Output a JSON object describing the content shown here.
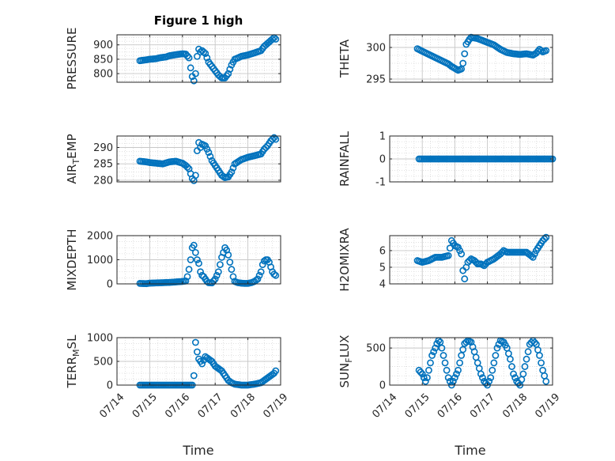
{
  "figure": {
    "title": "Figure 1 high",
    "xlabel": "Time",
    "xticks": [
      "07/14",
      "07/15",
      "07/16",
      "07/17",
      "07/18",
      "07/19"
    ],
    "marker_color": "#0072BD"
  },
  "chart_data": [
    {
      "type": "scatter",
      "ylabel": "PRESSURE",
      "xlim": [
        "07/14",
        "07/19"
      ],
      "ylim": [
        770,
        935
      ],
      "yticks": [
        800,
        850,
        900
      ],
      "yticklabels": [
        "800",
        "850",
        "900"
      ],
      "grid": true,
      "x_start_day": 14.7,
      "x_end_day": 18.85,
      "x": [
        14.7,
        14.9,
        15.0,
        15.2,
        15.3,
        15.5,
        15.6,
        15.8,
        16.0,
        16.1,
        16.2,
        16.25,
        16.3,
        16.35,
        16.4,
        16.45,
        16.5,
        16.55,
        16.6,
        16.7,
        16.8,
        17.0,
        17.1,
        17.2,
        17.3,
        17.4,
        17.5,
        17.6,
        17.8,
        18.0,
        18.2,
        18.4,
        18.5,
        18.6,
        18.7,
        18.8,
        18.85
      ],
      "y": [
        845,
        848,
        850,
        852,
        855,
        858,
        862,
        866,
        869,
        868,
        855,
        820,
        790,
        775,
        800,
        860,
        885,
        875,
        880,
        870,
        840,
        810,
        795,
        785,
        785,
        800,
        830,
        850,
        860,
        865,
        872,
        880,
        895,
        905,
        915,
        925,
        920
      ]
    },
    {
      "type": "scatter",
      "ylabel": "THETA",
      "xlim": [
        "07/14",
        "07/19"
      ],
      "ylim": [
        294.5,
        302
      ],
      "yticks": [
        295,
        300
      ],
      "yticklabels": [
        "295",
        "300"
      ],
      "grid": true,
      "x": [
        14.85,
        15.0,
        15.2,
        15.4,
        15.6,
        15.8,
        15.9,
        16.0,
        16.1,
        16.2,
        16.25,
        16.3,
        16.35,
        16.45,
        16.5,
        16.6,
        16.7,
        16.8,
        17.0,
        17.2,
        17.4,
        17.6,
        17.8,
        18.0,
        18.2,
        18.4,
        18.5,
        18.6,
        18.7,
        18.8
      ],
      "y": [
        299.8,
        299.4,
        298.9,
        298.4,
        297.9,
        297.4,
        297.0,
        296.7,
        296.4,
        296.6,
        297.5,
        299.0,
        300.5,
        301.3,
        301.6,
        301.5,
        301.4,
        301.2,
        300.8,
        300.4,
        299.7,
        299.2,
        299.0,
        298.9,
        299.0,
        298.8,
        299.1,
        299.7,
        299.3,
        299.5
      ]
    },
    {
      "type": "scatter",
      "ylabel": "AIR_TEMP",
      "xlim": [
        "07/14",
        "07/19"
      ],
      "ylim": [
        279.5,
        293.5
      ],
      "yticks": [
        280,
        285,
        290
      ],
      "yticklabels": [
        "280",
        "285",
        "290"
      ],
      "grid": true,
      "x": [
        14.7,
        14.9,
        15.0,
        15.2,
        15.4,
        15.6,
        15.8,
        16.0,
        16.1,
        16.2,
        16.25,
        16.3,
        16.35,
        16.4,
        16.45,
        16.5,
        16.55,
        16.6,
        16.7,
        16.8,
        16.9,
        17.0,
        17.1,
        17.2,
        17.3,
        17.4,
        17.5,
        17.6,
        17.8,
        18.0,
        18.2,
        18.4,
        18.5,
        18.6,
        18.7,
        18.8,
        18.85
      ],
      "y": [
        285.8,
        285.6,
        285.4,
        285.2,
        285.0,
        285.6,
        285.8,
        285.2,
        284.5,
        283.5,
        282.0,
        280.5,
        279.9,
        281.5,
        289.0,
        291.5,
        290.0,
        291.0,
        290.5,
        288.5,
        286.0,
        284.5,
        283.0,
        281.5,
        280.8,
        281.0,
        282.5,
        285.0,
        286.3,
        287.0,
        287.5,
        288.0,
        289.5,
        290.5,
        292.0,
        293.0,
        292.5
      ]
    },
    {
      "type": "scatter",
      "ylabel": "RAINFALL",
      "xlim": [
        "07/14",
        "07/19"
      ],
      "ylim": [
        -1,
        1
      ],
      "yticks": [
        -1,
        0,
        1
      ],
      "yticklabels": [
        "-1",
        "0",
        "1"
      ],
      "grid": true,
      "x_start_day": 14.9,
      "x_end_day": 19.0,
      "y_constant": 0
    },
    {
      "type": "scatter",
      "ylabel": "MIXDEPTH",
      "xlim": [
        "07/14",
        "07/19"
      ],
      "ylim": [
        0,
        2000
      ],
      "yticks": [
        0,
        1000,
        2000
      ],
      "yticklabels": [
        "0",
        "1000",
        "2000"
      ],
      "grid": true,
      "x": [
        14.7,
        14.9,
        15.0,
        15.2,
        15.4,
        15.6,
        15.8,
        16.0,
        16.1,
        16.15,
        16.2,
        16.25,
        16.3,
        16.35,
        16.4,
        16.45,
        16.5,
        16.55,
        16.6,
        16.65,
        16.7,
        16.75,
        16.8,
        16.9,
        17.0,
        17.1,
        17.15,
        17.2,
        17.25,
        17.3,
        17.35,
        17.4,
        17.45,
        17.5,
        17.55,
        17.6,
        17.7,
        17.8,
        17.9,
        18.0,
        18.1,
        18.2,
        18.3,
        18.4,
        18.45,
        18.5,
        18.55,
        18.6,
        18.65,
        18.7,
        18.75,
        18.8,
        18.85
      ],
      "y": [
        20,
        10,
        30,
        40,
        50,
        60,
        80,
        100,
        120,
        300,
        600,
        1000,
        1500,
        1600,
        1300,
        1000,
        850,
        500,
        350,
        300,
        200,
        100,
        50,
        40,
        200,
        500,
        800,
        1100,
        1300,
        1500,
        1400,
        1200,
        900,
        600,
        300,
        100,
        50,
        30,
        20,
        20,
        50,
        100,
        200,
        500,
        800,
        950,
        1000,
        1000,
        900,
        700,
        500,
        400,
        350
      ]
    },
    {
      "type": "scatter",
      "ylabel": "H2OMIXRA",
      "xlim": [
        "07/14",
        "07/19"
      ],
      "ylim": [
        4,
        6.9
      ],
      "yticks": [
        4,
        5,
        6
      ],
      "yticklabels": [
        "4",
        "5",
        "6"
      ],
      "grid": true,
      "x": [
        14.85,
        15.0,
        15.2,
        15.4,
        15.6,
        15.8,
        15.9,
        16.0,
        16.1,
        16.2,
        16.25,
        16.3,
        16.35,
        16.4,
        16.5,
        16.6,
        16.7,
        16.8,
        16.9,
        17.0,
        17.2,
        17.4,
        17.5,
        17.6,
        17.8,
        18.0,
        18.2,
        18.4,
        18.5,
        18.6,
        18.7,
        18.8
      ],
      "y": [
        5.4,
        5.3,
        5.4,
        5.6,
        5.6,
        5.7,
        6.6,
        6.3,
        6.2,
        5.8,
        4.8,
        4.3,
        5.0,
        5.3,
        5.5,
        5.4,
        5.2,
        5.2,
        5.1,
        5.3,
        5.5,
        5.8,
        6.0,
        5.9,
        5.9,
        5.9,
        5.9,
        5.6,
        6.0,
        6.3,
        6.6,
        6.8
      ]
    },
    {
      "type": "scatter",
      "ylabel": "TERR_MSL",
      "xlim": [
        "07/14",
        "07/19"
      ],
      "ylim": [
        0,
        1000
      ],
      "yticks": [
        0,
        500,
        1000
      ],
      "yticklabels": [
        "0",
        "500",
        "1000"
      ],
      "grid": true,
      "x": [
        14.7,
        14.9,
        15.0,
        15.2,
        15.4,
        15.6,
        15.8,
        16.0,
        16.1,
        16.2,
        16.25,
        16.3,
        16.35,
        16.4,
        16.45,
        16.5,
        16.55,
        16.6,
        16.7,
        16.8,
        16.9,
        17.0,
        17.1,
        17.2,
        17.3,
        17.4,
        17.5,
        17.6,
        17.7,
        17.8,
        18.0,
        18.2,
        18.4,
        18.5,
        18.6,
        18.7,
        18.8,
        18.85
      ],
      "y": [
        0,
        0,
        0,
        0,
        0,
        0,
        0,
        0,
        0,
        0,
        0,
        0,
        200,
        900,
        700,
        550,
        500,
        450,
        600,
        550,
        500,
        400,
        350,
        300,
        200,
        100,
        50,
        20,
        10,
        0,
        0,
        20,
        50,
        100,
        150,
        200,
        250,
        300
      ]
    },
    {
      "type": "scatter",
      "ylabel": "SUN_FLUX",
      "xlim": [
        "07/14",
        "07/19"
      ],
      "ylim": [
        0,
        640
      ],
      "yticks": [
        0,
        500
      ],
      "yticklabels": [
        "0",
        "500"
      ],
      "grid": true,
      "x": [
        14.9,
        15.0,
        15.05,
        15.1,
        15.15,
        15.2,
        15.25,
        15.3,
        15.35,
        15.4,
        15.45,
        15.5,
        15.55,
        15.6,
        15.65,
        15.7,
        15.75,
        15.8,
        15.85,
        15.9,
        15.95,
        16.0,
        16.1,
        16.2,
        16.3,
        16.4,
        16.5,
        16.6,
        16.7,
        16.8,
        16.9,
        17.0,
        17.1,
        17.2,
        17.3,
        17.4,
        17.5,
        17.6,
        17.7,
        17.8,
        17.9,
        18.0,
        18.1,
        18.2,
        18.3,
        18.4,
        18.5,
        18.6,
        18.7,
        18.8
      ],
      "y": [
        200,
        150,
        100,
        50,
        100,
        200,
        300,
        400,
        450,
        500,
        560,
        600,
        580,
        500,
        400,
        300,
        200,
        100,
        50,
        0,
        50,
        100,
        200,
        400,
        560,
        600,
        580,
        450,
        300,
        150,
        50,
        0,
        100,
        300,
        500,
        600,
        580,
        500,
        350,
        150,
        50,
        0,
        150,
        350,
        550,
        600,
        550,
        400,
        200,
        50
      ]
    }
  ]
}
